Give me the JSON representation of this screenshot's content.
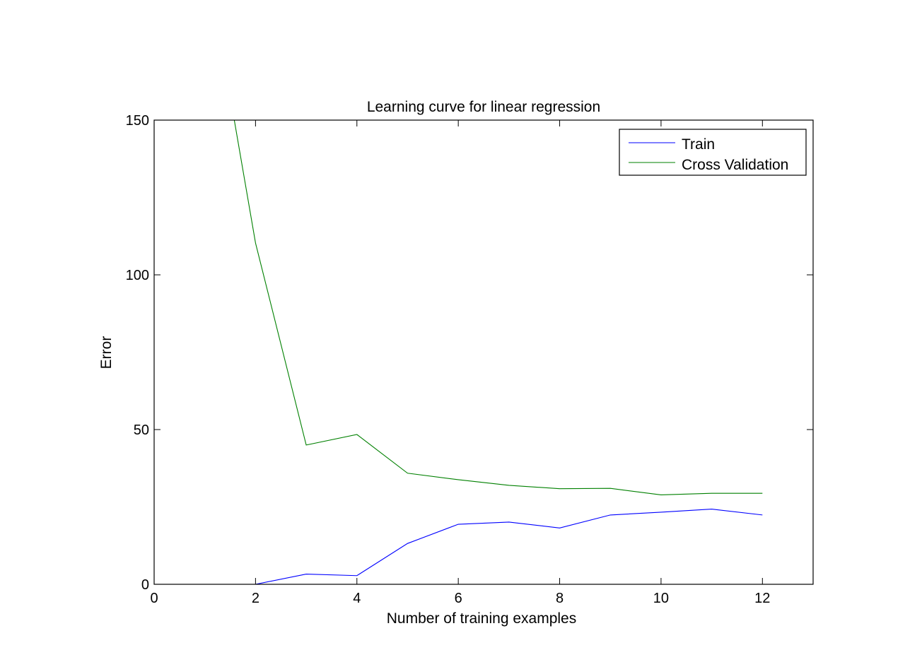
{
  "chart_data": {
    "type": "line",
    "title": "Learning curve for linear regression",
    "xlabel": "Number of training examples",
    "ylabel": "Error",
    "xlim": [
      0,
      13
    ],
    "ylim": [
      0,
      150
    ],
    "xticks": [
      0,
      2,
      4,
      6,
      8,
      10,
      12
    ],
    "yticks": [
      0,
      50,
      100,
      150
    ],
    "grid": false,
    "legend_position": "top-right",
    "series": [
      {
        "name": "Train",
        "color": "#0000ff",
        "x": [
          1,
          2,
          3,
          4,
          5,
          6,
          7,
          8,
          9,
          10,
          11,
          12
        ],
        "y": [
          0.0,
          0.0,
          3.3,
          2.8,
          13.2,
          19.4,
          20.1,
          18.2,
          22.4,
          23.3,
          24.3,
          22.4
        ]
      },
      {
        "name": "Cross Validation",
        "color": "#008000",
        "x": [
          1,
          2,
          3,
          4,
          5,
          6,
          7,
          8,
          9,
          10,
          11,
          12
        ],
        "y": [
          205.1,
          110.3,
          45.0,
          48.4,
          35.9,
          33.8,
          31.97,
          30.9,
          31.0,
          28.9,
          29.4,
          29.4
        ]
      }
    ]
  }
}
